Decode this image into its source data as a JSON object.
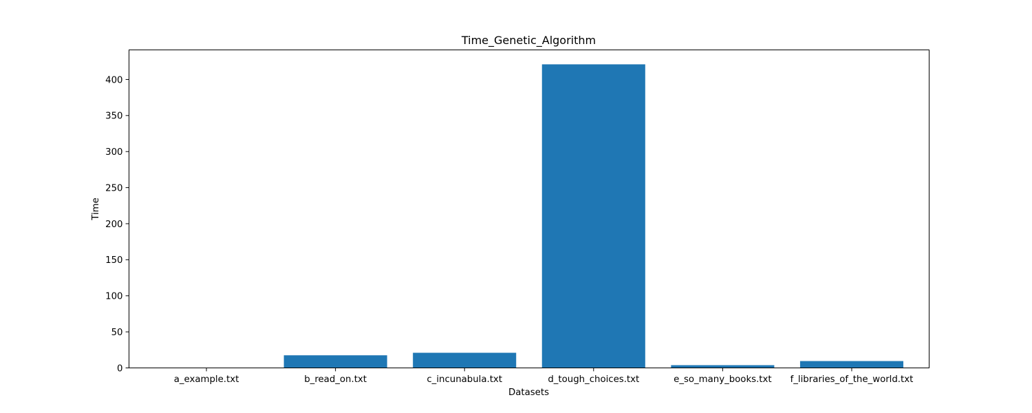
{
  "chart_data": {
    "type": "bar",
    "title": "Time_Genetic_Algorithm",
    "xlabel": "Datasets",
    "ylabel": "Time",
    "categories": [
      "a_example.txt",
      "b_read_on.txt",
      "c_incunabula.txt",
      "d_tough_choices.txt",
      "e_so_many_books.txt",
      "f_libraries_of_the_world.txt"
    ],
    "values": [
      0.05,
      17.5,
      21.0,
      421.0,
      3.8,
      9.5
    ],
    "ylim": [
      0,
      441
    ],
    "yticks": [
      0,
      50,
      100,
      150,
      200,
      250,
      300,
      350,
      400
    ],
    "bar_color": "#1f77b4",
    "grid": false,
    "legend": false
  }
}
